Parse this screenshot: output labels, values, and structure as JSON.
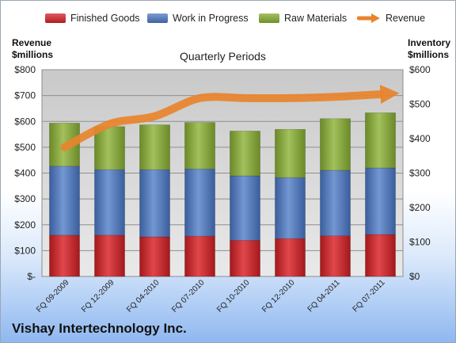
{
  "company": "Vishay Intertechnology Inc.",
  "chart_data": {
    "type": "bar",
    "stacked": true,
    "title": "Quarterly Periods",
    "left_axis_label": [
      "Revenue",
      "$millions"
    ],
    "right_axis_label": [
      "Inventory",
      "$millions"
    ],
    "categories": [
      "FQ 09-2009",
      "FQ 12-2009",
      "FQ 04-2010",
      "FQ 07-2010",
      "FQ 10-2010",
      "FQ 12-2010",
      "FQ 04-2011",
      "FQ 07-2011"
    ],
    "left_axis": {
      "ylim": [
        0,
        800
      ],
      "ticks": [
        0,
        100,
        200,
        300,
        400,
        500,
        600,
        700,
        800
      ],
      "tick_labels": [
        "$-",
        "$100",
        "$200",
        "$300",
        "$400",
        "$500",
        "$600",
        "$700",
        "$800"
      ]
    },
    "right_axis": {
      "ylim": [
        0,
        600
      ],
      "ticks": [
        0,
        100,
        200,
        300,
        400,
        500,
        600
      ],
      "tick_labels": [
        "$0",
        "$100",
        "$200",
        "$300",
        "$400",
        "$500",
        "$600"
      ]
    },
    "series": [
      {
        "name": "Finished Goods",
        "type": "bar",
        "axis": "right",
        "color": "#c0262b",
        "values": [
          120,
          120,
          115,
          117,
          105,
          110,
          118,
          122
        ]
      },
      {
        "name": "Work in Progress",
        "type": "bar",
        "axis": "right",
        "color": "#4e74b4",
        "values": [
          200,
          190,
          195,
          195,
          187,
          177,
          190,
          193
        ]
      },
      {
        "name": "Raw Materials",
        "type": "bar",
        "axis": "right",
        "color": "#7f9f36",
        "values": [
          125,
          125,
          130,
          135,
          130,
          140,
          150,
          160
        ]
      },
      {
        "name": "Revenue",
        "type": "line",
        "axis": "left",
        "color": "#e8842d",
        "values": [
          500,
          590,
          620,
          690,
          690,
          690,
          695,
          705
        ]
      }
    ],
    "grid": true,
    "legend_position": "top"
  }
}
